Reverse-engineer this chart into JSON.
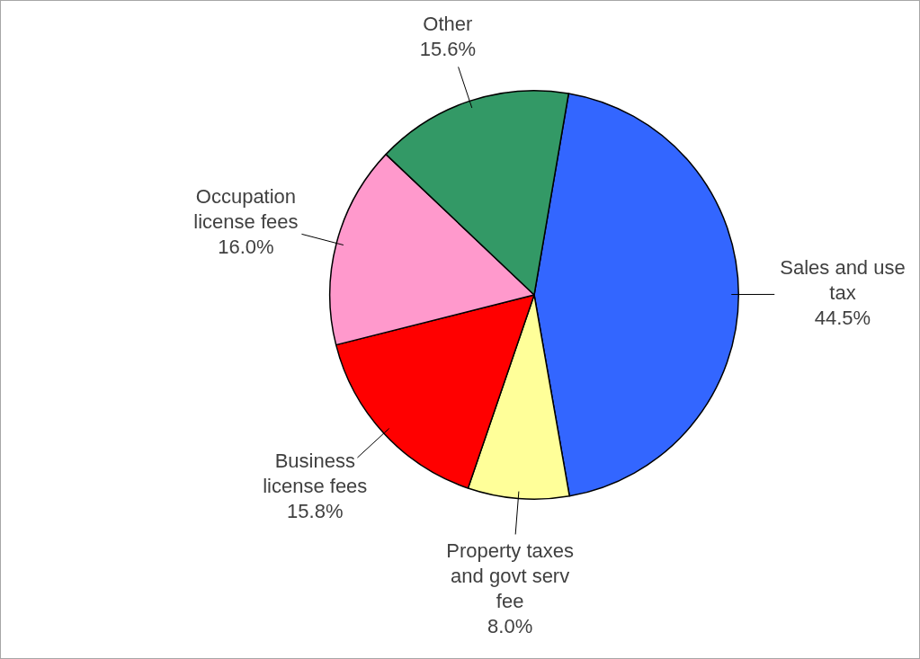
{
  "chart_data": {
    "type": "pie",
    "categories": [
      "Sales and use tax",
      "Property taxes and govt serv fee",
      "Business license fees",
      "Occupation license fees",
      "Other"
    ],
    "values": [
      44.5,
      8.0,
      15.8,
      16.0,
      15.6
    ],
    "value_labels": [
      "44.5%",
      "8.0%",
      "15.8%",
      "16.0%",
      "15.6%"
    ],
    "colors": [
      "#3366ff",
      "#ffff99",
      "#ff0000",
      "#ff99cc",
      "#339966"
    ],
    "legend": false
  }
}
